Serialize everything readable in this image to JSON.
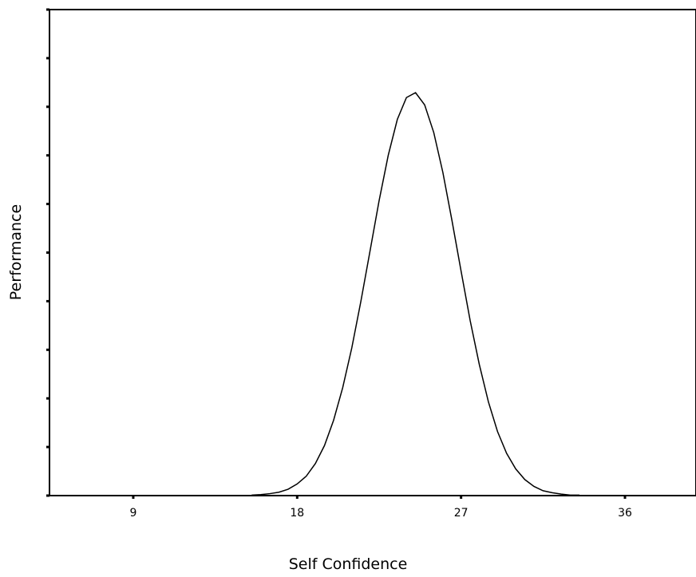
{
  "chart_data": {
    "type": "line",
    "x_label": "Self Confidence",
    "y_label": "Performance",
    "x": [
      15.5,
      16.0,
      16.5,
      17.0,
      17.5,
      18.0,
      18.5,
      19.0,
      19.5,
      20.0,
      20.5,
      21.0,
      21.5,
      22.0,
      22.5,
      23.0,
      23.5,
      24.0,
      24.5,
      25.0,
      25.5,
      26.0,
      26.5,
      27.0,
      27.5,
      28.0,
      28.5,
      29.0,
      29.5,
      30.0,
      30.5,
      31.0,
      31.5,
      32.0,
      32.5,
      33.0,
      33.5
    ],
    "series": [
      {
        "color": "#000000",
        "values": [
          0.01,
          0.02,
          0.04,
          0.07,
          0.13,
          0.24,
          0.4,
          0.66,
          1.03,
          1.55,
          2.22,
          3.04,
          4.0,
          5.03,
          6.07,
          7.0,
          7.74,
          8.19,
          8.29,
          8.04,
          7.47,
          6.65,
          5.66,
          4.62,
          3.6,
          2.7,
          1.93,
          1.32,
          0.87,
          0.55,
          0.33,
          0.19,
          0.1,
          0.06,
          0.03,
          0.01,
          0.01
        ]
      }
    ],
    "xlim": [
      4.4,
      39.9
    ],
    "xticks": [
      9,
      18,
      27,
      36
    ],
    "ylim": [
      0,
      10
    ],
    "yticks": [
      0,
      1,
      2,
      3,
      4,
      5,
      6,
      7,
      8,
      9,
      10
    ]
  }
}
